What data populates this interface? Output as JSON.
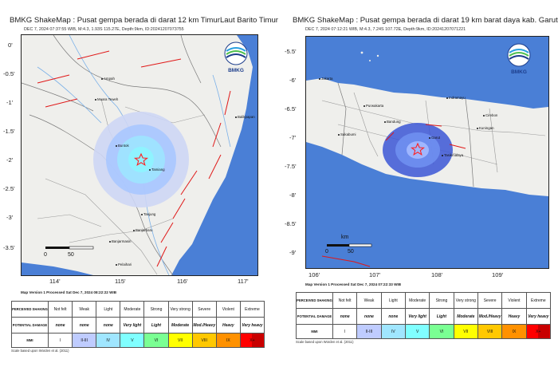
{
  "left_map": {
    "title": "BMKG ShakeMap : Pusat gempa berada di darat 12 km TimurLaut Barito Timur",
    "subtitle": "DEC 7, 2024 07:37:55 WIB, M:4.3, 1.93S 115.27E, Depth:9km, ID:20241207073755",
    "lat_ticks": [
      "0'",
      "-0.5'",
      "-1'",
      "-1.5'",
      "-2'",
      "-2.5'",
      "-3'",
      "-3.5'"
    ],
    "lon_ticks": [
      "114'",
      "115'",
      "116'",
      "117'"
    ],
    "cities": [
      "Muara Teweh",
      "Buntok",
      "Tamiang",
      "Balikpapan",
      "Banjarbaru",
      "Banjarmasin",
      "Pelaihari",
      "Ampah",
      "Tanjung"
    ],
    "scale_values": [
      "0",
      "50"
    ],
    "version": "Map Version 1 Processed Sat Dec  7, 2024 08:22:22 WIB",
    "logo": "BMKG",
    "footnote": "Scale based upon Worden et al. (2011)"
  },
  "right_map": {
    "title": "BMKG ShakeMap : Pusat gempa berada di darat 19 km barat daya kab. Garut",
    "subtitle": "DEC 7, 2024 07:12:21 WIB, M:4.3, 7.24S 107.72E, Depth:9km, ID:20241207071221",
    "lat_ticks": [
      "-5.5'",
      "-6'",
      "-6.5'",
      "-7'",
      "-7.5'",
      "-8'",
      "-8.5'",
      "-9'"
    ],
    "lon_ticks": [
      "106'",
      "107'",
      "108'",
      "109'"
    ],
    "cities": [
      "Jakarta",
      "Indramayu",
      "Purwakarta",
      "Cirebon",
      "Bandung",
      "Kuningan",
      "Sukabumi",
      "Garut",
      "Tasikmalaya"
    ],
    "scale_unit": "km",
    "scale_values": [
      "0",
      "50"
    ],
    "version": "Map Version 1 Processed Sat Dec  7, 2024 07:22:33 WIB",
    "logo": "BMKG",
    "footnote": "Scale based upon Worden et al. (2011)"
  },
  "legend": {
    "row_labels": [
      "PERCEIVED SHAKING",
      "POTENTIAL DAMAGE",
      "MMI"
    ],
    "shaking": [
      "Not felt",
      "Weak",
      "Light",
      "Moderate",
      "Strong",
      "Very strong",
      "Severe",
      "Violent",
      "Extreme"
    ],
    "damage": [
      "none",
      "none",
      "none",
      "Very light",
      "Light",
      "Moderate",
      "Mod./Heavy",
      "Heavy",
      "Very heavy"
    ],
    "mmi": [
      "I",
      "II-III",
      "IV",
      "V",
      "VI",
      "VII",
      "VIII",
      "IX",
      "X+"
    ],
    "colors": [
      "#ffffff",
      "#bfccff",
      "#a0e6ff",
      "#80ffff",
      "#7aff93",
      "#ffff00",
      "#ffc800",
      "#ff9100",
      "#ff0000",
      "#c80000"
    ]
  },
  "colors": {
    "sea": "#4a7fd6",
    "land": "#efefec",
    "fault": "#e01818",
    "river": "#7ab0e8",
    "epicenter": "#ff2020"
  }
}
